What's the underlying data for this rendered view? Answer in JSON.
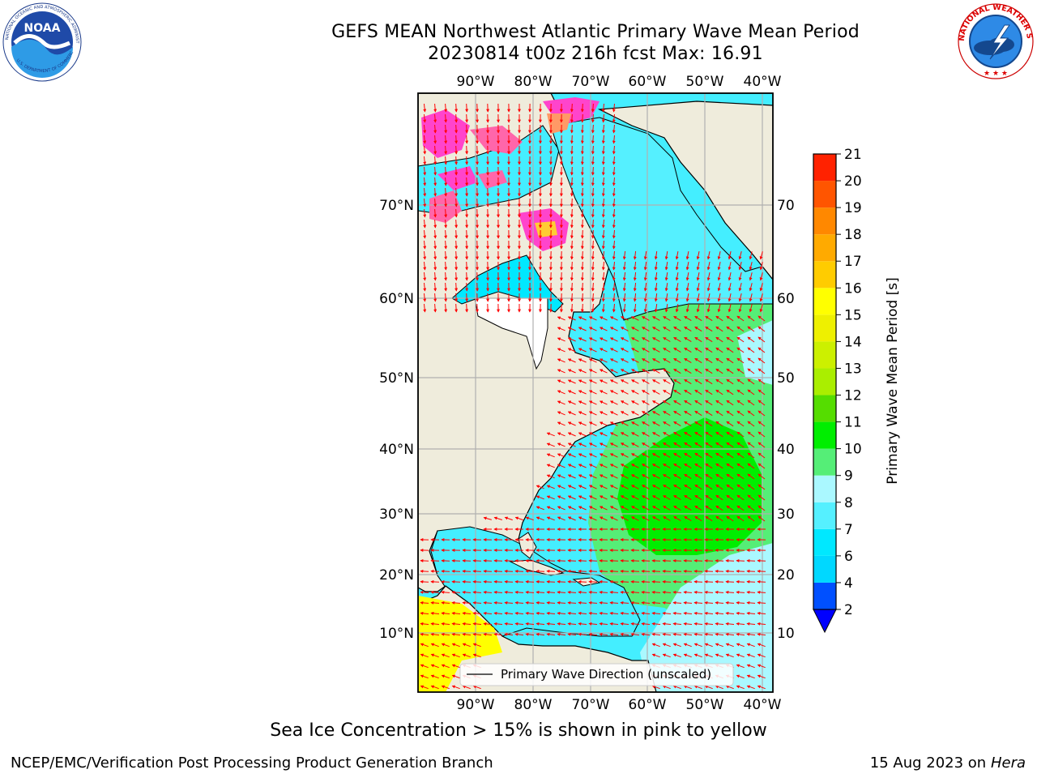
{
  "header": {
    "title_line1": "GEFS MEAN Northwest Atlantic Primary Wave Mean Period",
    "title_line2": "20230814 t00z 216h fcst   Max: 16.91"
  },
  "logos": {
    "noaa": {
      "name": "noaa-logo",
      "text": "NOAA",
      "ring_text": "NATIONAL OCEANIC AND ATMOSPHERIC ADMINISTRATION",
      "ring_text_bottom": "U.S. DEPARTMENT OF COMMERCE"
    },
    "nws": {
      "name": "nws-logo",
      "ring_text": "NATIONAL WEATHER SERVICE"
    }
  },
  "map": {
    "projection": "Plate Carree",
    "lon_range": [
      -100,
      -37
    ],
    "lat_range": [
      2,
      81
    ],
    "lon_ticks": [
      "90°W",
      "80°W",
      "70°W",
      "60°W",
      "50°W",
      "40°W"
    ],
    "lat_ticks": [
      "70°N",
      "60°N",
      "50°N",
      "40°N",
      "30°N",
      "20°N",
      "10°N"
    ],
    "grid": true,
    "legend": {
      "placement": "lower-center",
      "label": "Primary Wave Direction (unscaled)"
    },
    "land_color": "#efecdc",
    "greenland_ice_color": "#ffffff",
    "arrow_color": "#ff0000",
    "ice_colors": [
      "#ff44cc",
      "#ff66aa",
      "#ff9966",
      "#ffcc33"
    ]
  },
  "colorbar": {
    "label": "Primary Wave Mean Period [s]",
    "levels": [
      2,
      4,
      6,
      7,
      8,
      9,
      10,
      11,
      12,
      13,
      14,
      15,
      16,
      17,
      18,
      19,
      20,
      21
    ],
    "colors": [
      "#0050ff",
      "#00d8ff",
      "#00e8ff",
      "#55f0ff",
      "#aaf8ff",
      "#55ee77",
      "#00ee00",
      "#55dd00",
      "#aaee00",
      "#ccf000",
      "#eef000",
      "#ffff00",
      "#ffcc00",
      "#ffaa00",
      "#ff8800",
      "#ff5500",
      "#ff2200",
      "#ff0000"
    ],
    "extend_min_color": "#0000ff",
    "extend": "min"
  },
  "footer": {
    "note": "Sea Ice Concentration > 15% is shown in pink to yellow",
    "branch": "NCEP/EMC/Verification Post Processing Product Generation Branch",
    "date": "15 Aug 2023 on",
    "machine": "Hera"
  }
}
